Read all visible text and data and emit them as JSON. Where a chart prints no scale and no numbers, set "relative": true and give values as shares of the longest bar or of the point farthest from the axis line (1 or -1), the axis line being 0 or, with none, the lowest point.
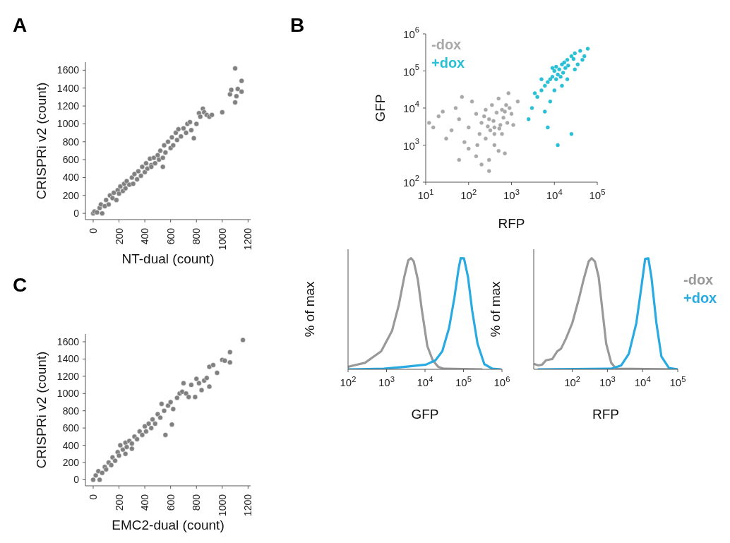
{
  "chart_data": [
    {
      "type": "scatter",
      "annotations": [
        "A"
      ],
      "xlabel": "NT-dual (count)",
      "ylabel": "CRISPRi v2 (count)",
      "xlim": [
        -60,
        1220
      ],
      "ylim": [
        -70,
        1690
      ],
      "xticks": [
        0,
        200,
        400,
        600,
        800,
        1000,
        1200
      ],
      "yticks": [
        0,
        200,
        400,
        600,
        800,
        1000,
        1200,
        1400,
        1600
      ],
      "marker": "circle",
      "series": [
        {
          "color": "#808080",
          "x": [
            0,
            10,
            30,
            50,
            70,
            60,
            90,
            100,
            120,
            130,
            150,
            160,
            180,
            190,
            200,
            210,
            230,
            240,
            250,
            260,
            280,
            300,
            310,
            320,
            340,
            350,
            370,
            380,
            400,
            410,
            420,
            440,
            450,
            470,
            480,
            500,
            510,
            520,
            540,
            550,
            560,
            580,
            600,
            610,
            620,
            640,
            650,
            660,
            680,
            700,
            720,
            730,
            750,
            760,
            780,
            800,
            820,
            830,
            850,
            860,
            880,
            900,
            920,
            1000,
            1060,
            1070,
            1100,
            1100,
            1110,
            1120,
            1150,
            1150,
            450,
            540
          ],
          "values": [
            0,
            20,
            10,
            60,
            0,
            100,
            80,
            150,
            100,
            200,
            170,
            230,
            150,
            260,
            220,
            300,
            250,
            330,
            280,
            360,
            320,
            400,
            330,
            440,
            380,
            470,
            420,
            520,
            460,
            560,
            500,
            610,
            540,
            620,
            560,
            650,
            600,
            700,
            620,
            760,
            680,
            800,
            730,
            850,
            760,
            900,
            820,
            940,
            860,
            950,
            900,
            1000,
            1020,
            930,
            840,
            1000,
            1120,
            1080,
            1170,
            1130,
            1100,
            1080,
            1100,
            1130,
            1330,
            1380,
            1620,
            1240,
            1310,
            1390,
            1480,
            1360,
            520,
            520
          ]
        }
      ]
    },
    {
      "type": "scatter",
      "annotations": [
        "C"
      ],
      "xlabel": "EMC2-dual (count)",
      "ylabel": "CRISPRi v2 (count)",
      "xlim": [
        -60,
        1220
      ],
      "ylim": [
        -70,
        1690
      ],
      "xticks": [
        0,
        200,
        400,
        600,
        800,
        1000,
        1200
      ],
      "yticks": [
        0,
        200,
        400,
        600,
        800,
        1000,
        1200,
        1400,
        1600
      ],
      "marker": "circle",
      "series": [
        {
          "color": "#808080",
          "x": [
            0,
            20,
            40,
            50,
            70,
            90,
            100,
            120,
            140,
            150,
            170,
            190,
            200,
            210,
            230,
            250,
            260,
            280,
            300,
            320,
            340,
            360,
            380,
            400,
            410,
            430,
            450,
            460,
            480,
            500,
            520,
            530,
            550,
            560,
            580,
            600,
            610,
            620,
            650,
            670,
            690,
            700,
            720,
            740,
            760,
            790,
            800,
            820,
            840,
            860,
            880,
            900,
            900,
            930,
            960,
            1000,
            1020,
            1060,
            1060,
            1160,
            300,
            250
          ],
          "values": [
            0,
            50,
            100,
            0,
            80,
            150,
            120,
            200,
            170,
            260,
            220,
            320,
            280,
            400,
            350,
            430,
            380,
            450,
            420,
            500,
            470,
            560,
            520,
            620,
            560,
            650,
            600,
            700,
            650,
            760,
            720,
            880,
            800,
            520,
            860,
            900,
            640,
            820,
            950,
            1000,
            1020,
            1120,
            1000,
            960,
            1100,
            960,
            1170,
            1120,
            1040,
            1150,
            1180,
            1080,
            1310,
            1330,
            1240,
            1390,
            1380,
            1480,
            1360,
            1620,
            360,
            300
          ]
        }
      ]
    },
    {
      "type": "scatter",
      "annotations": [
        "B"
      ],
      "xlabel": "RFP",
      "ylabel": "GFP",
      "log": "xy",
      "legend": "top left",
      "marker": "circle",
      "xlim": [
        10,
        100000
      ],
      "ylim": [
        100,
        1000000
      ],
      "xticks": [
        {
          "value": 10,
          "label": "10$^{1}$"
        },
        {
          "value": 100,
          "label": "10$^{2}$"
        },
        {
          "value": 1000,
          "label": "10$^{3}$"
        },
        {
          "value": 10000,
          "label": "10$^{4}$"
        },
        {
          "value": 100000,
          "label": "10$^{5}$"
        }
      ],
      "yticks": [
        {
          "value": 100,
          "label": "10$^{2}$"
        },
        {
          "value": 1000,
          "label": "10$^{3}$"
        },
        {
          "value": 10000,
          "label": "10$^{4}$"
        },
        {
          "value": 100000,
          "label": "10$^{5}$"
        },
        {
          "value": 1000000,
          "label": "10$^{6}$"
        }
      ],
      "series": [
        {
          "name": "-dox",
          "color": "#a9a9a9",
          "x": [
            300,
            200,
            500,
            400,
            700,
            150,
            100,
            60,
            40,
            20,
            15,
            30,
            80,
            250,
            400,
            600,
            800,
            900,
            1000,
            350,
            250,
            120,
            50,
            500,
            300,
            200,
            700,
            100,
            60,
            400,
            550,
            650,
            450,
            180,
            230,
            320,
            750,
            1100,
            1400,
            25,
            12,
            70,
            850,
            300,
            150,
            600,
            380,
            160,
            280,
            520
          ],
          "values": [
            5000,
            4000,
            18000,
            3000,
            8000,
            7000,
            3000,
            5000,
            2500,
            6000,
            3000,
            1500,
            1200,
            1500,
            1000,
            2000,
            4000,
            10000,
            7000,
            12000,
            9000,
            15000,
            10000,
            700,
            400,
            300,
            600,
            800,
            400,
            2000,
            3500,
            5500,
            7500,
            2000,
            6000,
            2500,
            12000,
            3500,
            15000,
            8000,
            4000,
            20000,
            25000,
            200,
            500,
            9000,
            4500,
            1000,
            3200,
            2800
          ]
        },
        {
          "name": "+dox",
          "color": "#29bfd4",
          "x": [
            10000,
            15000,
            20000,
            12000,
            8000,
            25000,
            30000,
            18000,
            13000,
            9000,
            7000,
            30000,
            16000,
            11000,
            14000,
            6000,
            5000,
            40000,
            50000,
            35000,
            4000,
            8000,
            6000,
            3000,
            15000,
            20000,
            10000,
            2500,
            7000,
            12000,
            25000,
            3500,
            60000,
            45000,
            9000,
            17000,
            21000,
            11000,
            28000,
            5000
          ],
          "values": [
            100000,
            150000,
            200000,
            80000,
            60000,
            250000,
            300000,
            120000,
            110000,
            70000,
            50000,
            110000,
            90000,
            130000,
            70000,
            40000,
            30000,
            350000,
            250000,
            150000,
            20000,
            15000,
            8000,
            10000,
            40000,
            60000,
            30000,
            5000,
            3000,
            1000,
            2000,
            25000,
            400000,
            200000,
            120000,
            170000,
            140000,
            60000,
            210000,
            60000
          ]
        }
      ]
    },
    {
      "type": "line",
      "xlabel": "GFP",
      "ylabel": "% of max",
      "relative": true,
      "log": "x",
      "xlim": [
        100,
        1000000
      ],
      "xticks": [
        {
          "value": 100,
          "label": "10$^{2}$"
        },
        {
          "value": 1000,
          "label": "10$^{3}$"
        },
        {
          "value": 10000,
          "label": "10$^{4}$"
        },
        {
          "value": 100000,
          "label": "10$^{5}$"
        },
        {
          "value": 1000000,
          "label": "10$^{6}$"
        }
      ],
      "marker": "none",
      "line_style": "solid",
      "series": [
        {
          "color": "#999999",
          "x": [
            100,
            274,
            726,
            1390,
            2080,
            2890,
            3680,
            4340,
            5100,
            6500,
            8300,
            11500,
            15900,
            22000,
            30400,
            296000
          ],
          "values": [
            0.023,
            0.058,
            0.162,
            0.346,
            0.577,
            0.831,
            0.982,
            1,
            0.97,
            0.808,
            0.531,
            0.208,
            0.081,
            0.023,
            0.005,
            0
          ]
        },
        {
          "color": "#29abe2",
          "x": [
            100,
            853,
            3130,
            10600,
            18700,
            28100,
            42100,
            58200,
            74300,
            84700,
            103000,
            131000,
            168000,
            232000,
            348000,
            566000,
            923000
          ],
          "values": [
            0,
            0.005,
            0.023,
            0.042,
            0.081,
            0.162,
            0.37,
            0.647,
            0.901,
            1,
            0.998,
            0.831,
            0.531,
            0.231,
            0.046,
            0.005,
            0
          ]
        }
      ]
    },
    {
      "type": "line",
      "xlabel": "RFP",
      "ylabel": "% of max",
      "relative": true,
      "log": "x",
      "legend": "right",
      "xlim": [
        8,
        100000
      ],
      "xticks": [
        {
          "value": 100,
          "label": "10$^{2}$"
        },
        {
          "value": 1000,
          "label": "10$^{3}$"
        },
        {
          "value": 10000,
          "label": "10$^{4}$"
        },
        {
          "value": 100000,
          "label": "10$^{5}$"
        }
      ],
      "marker": "none",
      "line_style": "solid",
      "series": [
        {
          "name": "-dox",
          "color": "#999999",
          "x": [
            8.5,
            10.9,
            13.9,
            17.8,
            26.8,
            37.3,
            47.7,
            66.3,
            100,
            151,
            210,
            291,
            355,
            440,
            562,
            719,
            921,
            1280,
            1780,
            92000
          ],
          "values": [
            0.046,
            0.035,
            0.042,
            0.081,
            0.092,
            0.162,
            0.185,
            0.277,
            0.416,
            0.624,
            0.808,
            0.97,
            1,
            0.97,
            0.831,
            0.531,
            0.231,
            0.058,
            0.005,
            0
          ]
        },
        {
          "name": "+dox",
          "color": "#29abe2",
          "x": [
            10.9,
            1280,
            2470,
            4050,
            6630,
            9210,
            11800,
            14600,
            17800,
            24700,
            34300,
            56200,
            100000
          ],
          "values": [
            0,
            0.005,
            0.035,
            0.139,
            0.416,
            0.739,
            0.993,
            0.998,
            0.831,
            0.416,
            0.115,
            0.012,
            0
          ]
        }
      ]
    }
  ]
}
